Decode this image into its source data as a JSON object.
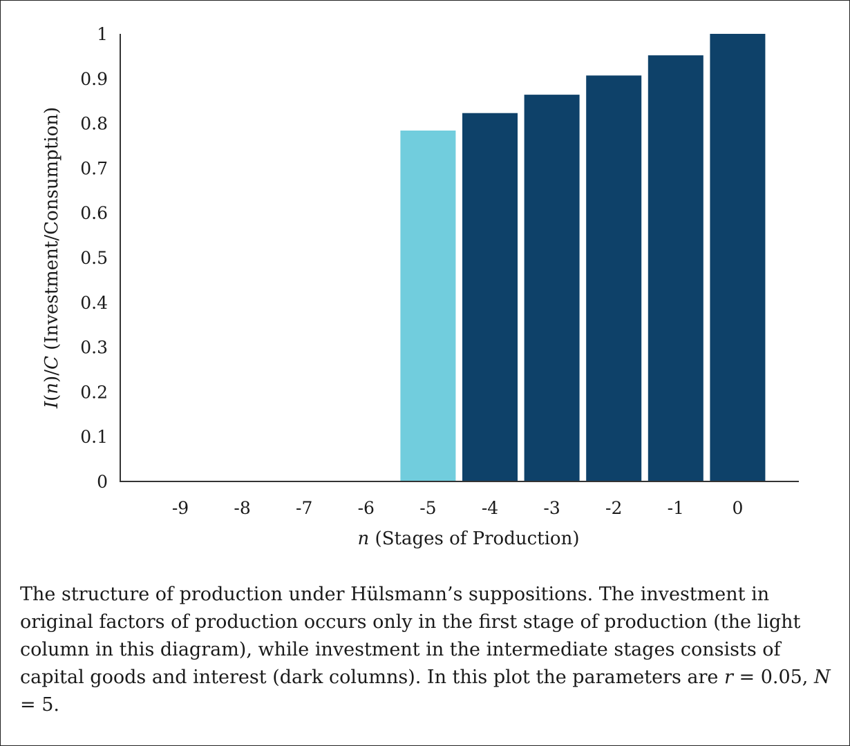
{
  "chart_data": {
    "type": "bar",
    "categories": [
      "-9",
      "-8",
      "-7",
      "-6",
      "-5",
      "-4",
      "-3",
      "-2",
      "-1",
      "0"
    ],
    "values": [
      0,
      0,
      0,
      0,
      0.784,
      0.823,
      0.864,
      0.907,
      0.952,
      1.0
    ],
    "bar_colors": [
      "#0e4169",
      "#0e4169",
      "#0e4169",
      "#0e4169",
      "#71cddd",
      "#0e4169",
      "#0e4169",
      "#0e4169",
      "#0e4169",
      "#0e4169"
    ],
    "ylim": [
      0,
      1
    ],
    "yticks": [
      "0",
      "0.1",
      "0.2",
      "0.3",
      "0.4",
      "0.5",
      "0.6",
      "0.7",
      "0.8",
      "0.9",
      "1"
    ],
    "xlabel": {
      "var": "n",
      "text": " (Stages of Production)"
    },
    "ylabel": {
      "var1": "I",
      "open": "(",
      "var2": "n",
      "close": ")/",
      "var3": "C",
      "text": " (Investment/Consumption)"
    },
    "grid": false
  },
  "caption": {
    "text": "The structure of production under Hülsmann’s suppositions. The investment in original factors of production occurs only in the first stage of production (the light column in this diagram), while investment in the intermediate stages consists of capital goods and interest (dark columns). In this plot the parameters are ",
    "r_var": "r",
    "r_value": " = 0.05, ",
    "n_var": "N",
    "n_value": " = 5."
  },
  "colors": {
    "dark": "#0e4169",
    "light": "#71cddd"
  }
}
